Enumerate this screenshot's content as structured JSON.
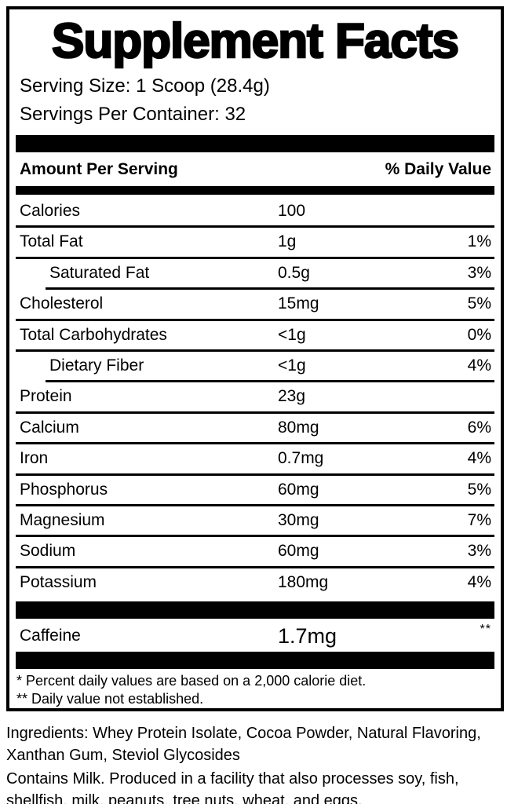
{
  "label": {
    "title": "Supplement Facts",
    "serving_size": "Serving Size: 1 Scoop (28.4g)",
    "servings_per_container": "Servings Per Container: 32",
    "header": {
      "amount_per_serving": "Amount Per Serving",
      "daily_value": "% Daily Value"
    },
    "rows": [
      {
        "label": "Calories",
        "amount": "100",
        "dv": "",
        "indent": false,
        "divider": "none"
      },
      {
        "label": "Total Fat",
        "amount": "1g",
        "dv": "1%",
        "indent": false,
        "divider": "full"
      },
      {
        "label": "Saturated Fat",
        "amount": "0.5g",
        "dv": "3%",
        "indent": true,
        "divider": "full"
      },
      {
        "label": "Cholesterol",
        "amount": "15mg",
        "dv": "5%",
        "indent": false,
        "divider": "indent"
      },
      {
        "label": "Total Carbohydrates",
        "amount": "<1g",
        "dv": "0%",
        "indent": false,
        "divider": "full"
      },
      {
        "label": "Dietary Fiber",
        "amount": "<1g",
        "dv": "4%",
        "indent": true,
        "divider": "full"
      },
      {
        "label": "Protein",
        "amount": "23g",
        "dv": "",
        "indent": false,
        "divider": "indent"
      },
      {
        "label": "Calcium",
        "amount": "80mg",
        "dv": "6%",
        "indent": false,
        "divider": "full"
      },
      {
        "label": "Iron",
        "amount": "0.7mg",
        "dv": "4%",
        "indent": false,
        "divider": "full"
      },
      {
        "label": "Phosphorus",
        "amount": "60mg",
        "dv": "5%",
        "indent": false,
        "divider": "full"
      },
      {
        "label": "Magnesium",
        "amount": "30mg",
        "dv": "7%",
        "indent": false,
        "divider": "full"
      },
      {
        "label": "Sodium",
        "amount": "60mg",
        "dv": "3%",
        "indent": false,
        "divider": "full"
      },
      {
        "label": "Potassium",
        "amount": "180mg",
        "dv": "4%",
        "indent": false,
        "divider": "full"
      }
    ],
    "caffeine_row": {
      "label": "Caffeine",
      "amount": "1.7mg",
      "dv": "**"
    },
    "footnotes": [
      "* Percent daily values are based on a 2,000 calorie diet.",
      "** Daily value not established."
    ],
    "colors": {
      "ink": "#000000",
      "paper": "#ffffff"
    }
  },
  "below": {
    "ingredients": "Ingredients: Whey Protein Isolate, Cocoa Powder, Natural Flavoring, Xanthan Gum, Steviol Glycosides",
    "allergen": "Contains Milk. Produced in a facility that also processes soy, fish, shellfish, milk, peanuts, tree nuts, wheat, and eggs."
  }
}
